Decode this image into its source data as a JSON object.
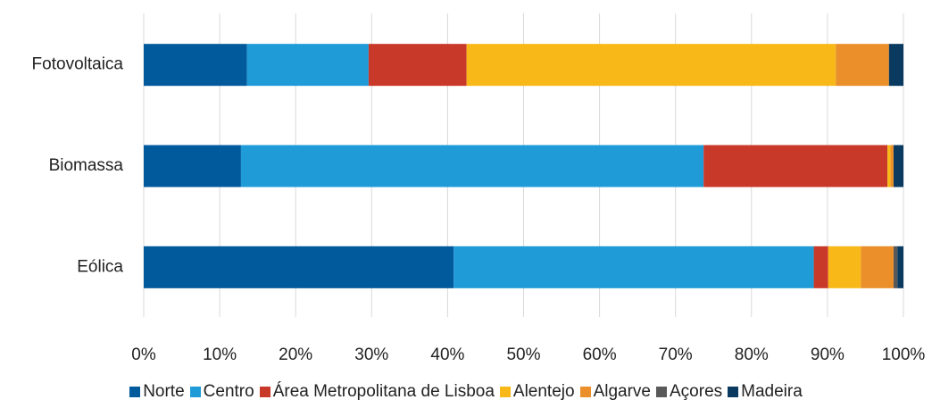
{
  "chart_data": {
    "type": "stacked_barh",
    "categories": [
      "Fotovoltaica",
      "Biomassa",
      "Eólica"
    ],
    "series": [
      {
        "name": "Norte",
        "color": "#005a9c",
        "values": [
          13.6,
          12.8,
          40.8
        ]
      },
      {
        "name": "Centro",
        "color": "#1f9bd7",
        "values": [
          16.0,
          60.9,
          47.4
        ]
      },
      {
        "name": "Área Metropolitana de Lisboa",
        "color": "#c9392a",
        "values": [
          12.9,
          24.2,
          1.9
        ]
      },
      {
        "name": "Alentejo",
        "color": "#f8b918",
        "values": [
          48.6,
          0.4,
          4.3
        ]
      },
      {
        "name": "Algarve",
        "color": "#ea8f2a",
        "values": [
          7.0,
          0.4,
          4.3
        ]
      },
      {
        "name": "Açores",
        "color": "#595959",
        "values": [
          0,
          0,
          0.5
        ]
      },
      {
        "name": "Madeira",
        "color": "#0b3a60",
        "values": [
          1.9,
          1.3,
          0.8
        ]
      }
    ],
    "xlim": [
      0,
      100
    ],
    "xticks": [
      {
        "value": 0,
        "label": "0%"
      },
      {
        "value": 10,
        "label": "10%"
      },
      {
        "value": 20,
        "label": "20%"
      },
      {
        "value": 30,
        "label": "30%"
      },
      {
        "value": 40,
        "label": "40%"
      },
      {
        "value": 50,
        "label": "50%"
      },
      {
        "value": 60,
        "label": "60%"
      },
      {
        "value": 70,
        "label": "70%"
      },
      {
        "value": 80,
        "label": "80%"
      },
      {
        "value": 90,
        "label": "90%"
      },
      {
        "value": 100,
        "label": "100%"
      }
    ],
    "grid": true,
    "legend": "bottom"
  }
}
